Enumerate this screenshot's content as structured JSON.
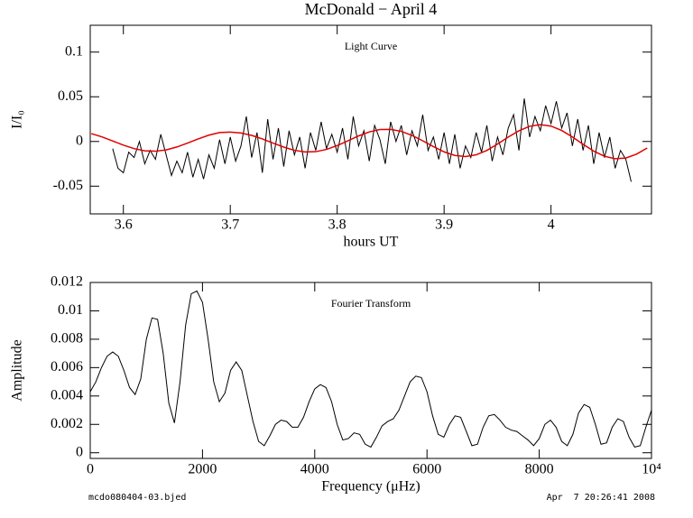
{
  "chart_data": [
    {
      "type": "line",
      "title": "McDonald − April 4",
      "annotation": "Light Curve",
      "xlabel": "hours UT",
      "ylabel": "I/I₀",
      "xlim": [
        3.569,
        4.094
      ],
      "ylim": [
        -0.081,
        0.13
      ],
      "xticks": [
        3.6,
        3.7,
        3.8,
        3.9,
        4
      ],
      "yticks": [
        -0.05,
        0,
        0.05,
        0.1
      ],
      "series": [
        {
          "color": "#000000",
          "x": [
            3.59,
            3.595,
            3.6,
            3.605,
            3.61,
            3.615,
            3.62,
            3.625,
            3.63,
            3.635,
            3.64,
            3.645,
            3.65,
            3.655,
            3.66,
            3.665,
            3.67,
            3.675,
            3.68,
            3.685,
            3.69,
            3.695,
            3.7,
            3.705,
            3.71,
            3.715,
            3.72,
            3.725,
            3.73,
            3.735,
            3.74,
            3.745,
            3.75,
            3.755,
            3.76,
            3.765,
            3.77,
            3.775,
            3.78,
            3.785,
            3.79,
            3.795,
            3.8,
            3.805,
            3.81,
            3.815,
            3.82,
            3.825,
            3.83,
            3.835,
            3.84,
            3.845,
            3.85,
            3.855,
            3.86,
            3.865,
            3.87,
            3.875,
            3.88,
            3.885,
            3.89,
            3.895,
            3.9,
            3.905,
            3.91,
            3.915,
            3.92,
            3.925,
            3.93,
            3.935,
            3.94,
            3.945,
            3.95,
            3.955,
            3.96,
            3.965,
            3.97,
            3.975,
            3.98,
            3.985,
            3.99,
            3.995,
            4.0,
            4.005,
            4.01,
            4.015,
            4.02,
            4.025,
            4.03,
            4.035,
            4.04,
            4.045,
            4.05,
            4.055,
            4.06,
            4.065,
            4.07,
            4.075
          ],
          "values": [
            -0.008,
            -0.03,
            -0.035,
            -0.012,
            -0.018,
            0,
            -0.025,
            -0.01,
            -0.02,
            0.008,
            -0.015,
            -0.038,
            -0.022,
            -0.035,
            -0.012,
            -0.04,
            -0.02,
            -0.042,
            -0.015,
            -0.03,
            0.002,
            -0.025,
            0.005,
            -0.022,
            -0.005,
            0.028,
            -0.018,
            0.01,
            -0.035,
            0.025,
            -0.02,
            0.015,
            -0.028,
            0.012,
            -0.015,
            0.005,
            -0.03,
            0.01,
            -0.01,
            0.022,
            -0.008,
            0.008,
            -0.012,
            0.015,
            -0.02,
            0.028,
            -0.005,
            0.012,
            -0.022,
            0.018,
            0.002,
            -0.025,
            0.022,
            0,
            0.018,
            -0.015,
            0.012,
            -0.005,
            0.03,
            -0.01,
            0.005,
            -0.02,
            0.01,
            -0.025,
            0.008,
            -0.03,
            -0.005,
            -0.018,
            0.01,
            -0.012,
            0.018,
            -0.022,
            0.005,
            -0.015,
            0.015,
            0.03,
            -0.01,
            0.048,
            0.005,
            0.028,
            0.012,
            0.04,
            0.02,
            0.045,
            0.015,
            0.032,
            -0.005,
            0.025,
            -0.01,
            0.018,
            -0.025,
            0.01,
            -0.018,
            0.005,
            -0.03,
            -0.01,
            -0.02,
            -0.045
          ]
        },
        {
          "color": "#e00000",
          "x": [
            3.57,
            3.58,
            3.59,
            3.6,
            3.61,
            3.62,
            3.63,
            3.64,
            3.65,
            3.66,
            3.67,
            3.68,
            3.69,
            3.7,
            3.71,
            3.72,
            3.73,
            3.74,
            3.75,
            3.76,
            3.77,
            3.78,
            3.79,
            3.8,
            3.81,
            3.82,
            3.83,
            3.84,
            3.85,
            3.86,
            3.87,
            3.88,
            3.89,
            3.9,
            3.91,
            3.92,
            3.93,
            3.94,
            3.95,
            3.96,
            3.97,
            3.98,
            3.99,
            4.0,
            4.01,
            4.02,
            4.03,
            4.04,
            4.05,
            4.06,
            4.07,
            4.08,
            4.09
          ],
          "values": [
            0.0088,
            0.0051,
            0.0006,
            -0.0041,
            -0.008,
            -0.0104,
            -0.0109,
            -0.0094,
            -0.0062,
            -0.0018,
            0.0029,
            0.0071,
            0.01,
            0.0105,
            0.0095,
            0.0068,
            0.0029,
            -0.0018,
            -0.0063,
            -0.0099,
            -0.0117,
            -0.0114,
            -0.0089,
            -0.0046,
            0.0007,
            0.0062,
            0.0107,
            0.0134,
            0.0135,
            0.0113,
            0.0068,
            0.0008,
            -0.0057,
            -0.0116,
            -0.0156,
            -0.0169,
            -0.0149,
            -0.01,
            -0.0029,
            0.0049,
            0.0119,
            0.017,
            0.0188,
            0.0172,
            0.0123,
            0.0051,
            -0.0031,
            -0.0108,
            -0.0166,
            -0.0193,
            -0.0185,
            -0.0142,
            -0.0073
          ]
        }
      ]
    },
    {
      "type": "line",
      "annotation": "Fourier Transform",
      "xlabel": "Frequency (μHz)",
      "ylabel": "Amplitude",
      "xlim": [
        0,
        10000
      ],
      "ylim": [
        -0.0004,
        0.012
      ],
      "xticks": [
        0,
        2000,
        4000,
        6000,
        8000,
        {
          "value": 10000,
          "label": "10⁴"
        }
      ],
      "yticks": [
        0,
        0.002,
        0.004,
        0.006,
        0.008,
        0.01,
        0.012
      ],
      "series": [
        {
          "color": "#000000",
          "x": [
            0,
            100,
            200,
            300,
            400,
            500,
            600,
            700,
            800,
            900,
            1000,
            1100,
            1200,
            1300,
            1400,
            1500,
            1600,
            1700,
            1800,
            1900,
            2000,
            2100,
            2200,
            2300,
            2400,
            2500,
            2600,
            2700,
            2800,
            2900,
            3000,
            3100,
            3200,
            3300,
            3400,
            3500,
            3600,
            3700,
            3800,
            3900,
            4000,
            4100,
            4200,
            4300,
            4400,
            4500,
            4600,
            4700,
            4800,
            4900,
            5000,
            5100,
            5200,
            5300,
            5400,
            5500,
            5600,
            5700,
            5800,
            5900,
            6000,
            6100,
            6200,
            6300,
            6400,
            6500,
            6600,
            6700,
            6800,
            6900,
            7000,
            7100,
            7200,
            7300,
            7400,
            7500,
            7600,
            7700,
            7800,
            7900,
            8000,
            8100,
            8200,
            8300,
            8400,
            8500,
            8600,
            8700,
            8800,
            8900,
            9000,
            9100,
            9200,
            9300,
            9400,
            9500,
            9600,
            9700,
            9800,
            9900,
            10000
          ],
          "values": [
            0.0043,
            0.005,
            0.006,
            0.0068,
            0.0071,
            0.0068,
            0.0058,
            0.0046,
            0.0041,
            0.0052,
            0.008,
            0.0095,
            0.0094,
            0.007,
            0.0035,
            0.0021,
            0.005,
            0.009,
            0.0112,
            0.0114,
            0.0106,
            0.008,
            0.005,
            0.0036,
            0.0042,
            0.0058,
            0.0064,
            0.0058,
            0.004,
            0.0022,
            0.0008,
            0.0005,
            0.0012,
            0.002,
            0.0023,
            0.0022,
            0.0018,
            0.0018,
            0.0025,
            0.0036,
            0.0045,
            0.0048,
            0.0046,
            0.0036,
            0.002,
            0.0009,
            0.001,
            0.0014,
            0.0013,
            0.0006,
            0.0004,
            0.0011,
            0.0019,
            0.0022,
            0.0024,
            0.003,
            0.004,
            0.005,
            0.0054,
            0.0053,
            0.0043,
            0.0026,
            0.0013,
            0.0011,
            0.002,
            0.0026,
            0.0025,
            0.0015,
            0.0005,
            0.0006,
            0.0018,
            0.0026,
            0.0027,
            0.0023,
            0.0018,
            0.0016,
            0.0015,
            0.0012,
            0.0009,
            0.0005,
            0.001,
            0.002,
            0.0023,
            0.0018,
            0.0008,
            0.0005,
            0.0013,
            0.0028,
            0.0034,
            0.0032,
            0.002,
            0.0006,
            0.0007,
            0.0018,
            0.0024,
            0.0022,
            0.0011,
            0.0004,
            0.0005,
            0.0018,
            0.003
          ]
        }
      ]
    }
  ],
  "footer": {
    "left": "mcdo080404-03.bjed",
    "right": "Apr  7 20:26:41 2008"
  }
}
